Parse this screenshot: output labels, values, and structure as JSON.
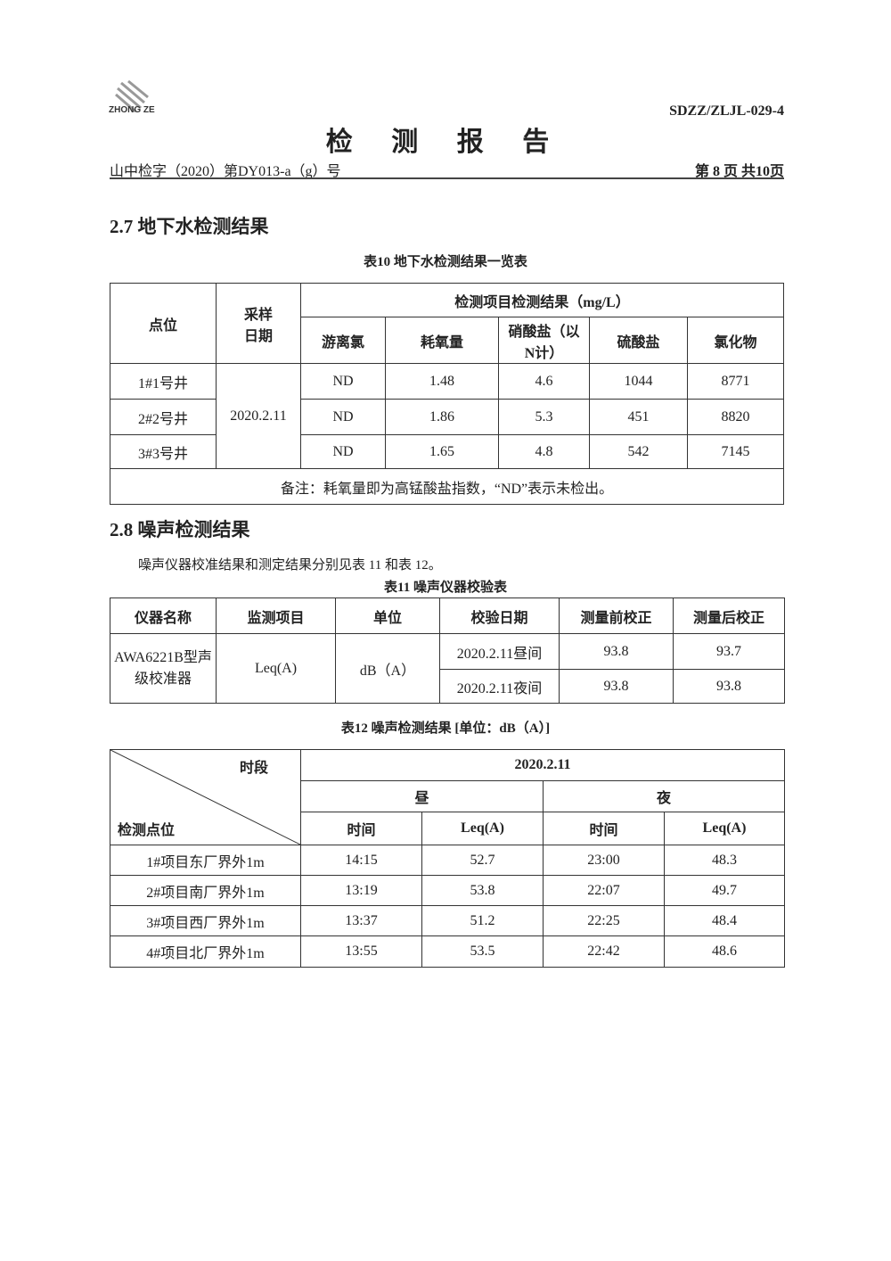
{
  "header": {
    "logo_text": "ZHONG ZE",
    "doc_code": "SDZZ/ZLJL-029-4",
    "title": "检 测 报 告",
    "report_no": "山中检字（2020）第DY013-a（g）号",
    "page_info": "第 8 页  共10页"
  },
  "section_27": {
    "heading": "2.7  地下水检测结果",
    "table_caption": "表10  地下水检测结果一览表",
    "col_point": "点位",
    "col_date": "采样日期",
    "group_header": "检测项目检测结果（mg/L）",
    "columns": [
      "游离氯",
      "耗氧量",
      "硝酸盐（以N计）",
      "硫酸盐",
      "氯化物"
    ],
    "date": "2020.2.11",
    "rows": [
      {
        "point": "1#1号井",
        "values": [
          "ND",
          "1.48",
          "4.6",
          "1044",
          "8771"
        ]
      },
      {
        "point": "2#2号井",
        "values": [
          "ND",
          "1.86",
          "5.3",
          "451",
          "8820"
        ]
      },
      {
        "point": "3#3号井",
        "values": [
          "ND",
          "1.65",
          "4.8",
          "542",
          "7145"
        ]
      }
    ],
    "note": "备注：耗氧量即为高锰酸盐指数，“ND”表示未检出。"
  },
  "section_28": {
    "heading": "2.8 噪声检测结果",
    "intro": "噪声仪器校准结果和测定结果分别见表 11 和表 12。",
    "table11": {
      "caption": "表11   噪声仪器校验表",
      "headers": [
        "仪器名称",
        "监测项目",
        "单位",
        "校验日期",
        "测量前校正",
        "测量后校正"
      ],
      "instrument": "AWA6221B型声级校准器",
      "item": "Leq(A)",
      "unit": "dB（A）",
      "rows": [
        {
          "date": "2020.2.11昼间",
          "before": "93.8",
          "after": "93.7"
        },
        {
          "date": "2020.2.11夜间",
          "before": "93.8",
          "after": "93.8"
        }
      ]
    },
    "table12": {
      "caption": "表12   噪声检测结果 [单位：dB（A）]",
      "corner_top": "时段",
      "corner_bottom": "检测点位",
      "date": "2020.2.11",
      "day": "昼",
      "night": "夜",
      "sub_headers": [
        "时间",
        "Leq(A)",
        "时间",
        "Leq(A)"
      ],
      "rows": [
        {
          "point": "1#项目东厂界外1m",
          "values": [
            "14:15",
            "52.7",
            "23:00",
            "48.3"
          ]
        },
        {
          "point": "2#项目南厂界外1m",
          "values": [
            "13:19",
            "53.8",
            "22:07",
            "49.7"
          ]
        },
        {
          "point": "3#项目西厂界外1m",
          "values": [
            "13:37",
            "51.2",
            "22:25",
            "48.4"
          ]
        },
        {
          "point": "4#项目北厂界外1m",
          "values": [
            "13:55",
            "53.5",
            "22:42",
            "48.6"
          ]
        }
      ]
    }
  }
}
